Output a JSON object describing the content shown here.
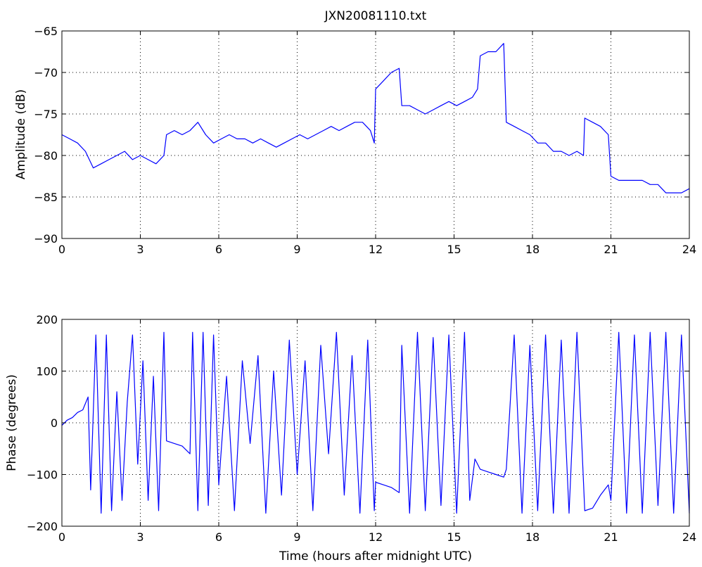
{
  "chart_data": [
    {
      "type": "line",
      "title": "JXN20081110.txt",
      "xlabel": "",
      "ylabel": "Amplitude (dB)",
      "xlim": [
        0,
        24
      ],
      "ylim": [
        -90,
        -65
      ],
      "xticks": [
        0,
        3,
        6,
        9,
        12,
        15,
        18,
        21,
        24
      ],
      "yticks": [
        -90,
        -85,
        -80,
        -75,
        -70,
        -65
      ],
      "grid": true,
      "color": "#0000ff",
      "series": [
        {
          "x": [
            0,
            0.3,
            0.6,
            0.9,
            1.2,
            1.5,
            1.8,
            2.1,
            2.4,
            2.7,
            3.0,
            3.3,
            3.6,
            3.9,
            4.0,
            4.3,
            4.6,
            4.9,
            5.2,
            5.5,
            5.8,
            6.1,
            6.4,
            6.7,
            7.0,
            7.3,
            7.6,
            7.9,
            8.2,
            8.5,
            8.8,
            9.1,
            9.4,
            9.7,
            10.0,
            10.3,
            10.6,
            10.9,
            11.2,
            11.5,
            11.8,
            11.95,
            12.0,
            12.3,
            12.6,
            12.9,
            13.0,
            13.3,
            13.6,
            13.9,
            14.2,
            14.5,
            14.8,
            15.1,
            15.4,
            15.7,
            15.9,
            16.0,
            16.3,
            16.6,
            16.9,
            17.0,
            17.3,
            17.6,
            17.9,
            18.2,
            18.5,
            18.8,
            19.1,
            19.4,
            19.7,
            19.95,
            20.0,
            20.3,
            20.6,
            20.9,
            21.0,
            21.3,
            21.6,
            21.9,
            22.2,
            22.5,
            22.8,
            23.1,
            23.4,
            23.7,
            24.0
          ],
          "values": [
            -77.5,
            -78,
            -78.5,
            -79.5,
            -81.5,
            -81,
            -80.5,
            -80,
            -79.5,
            -80.5,
            -80,
            -80.5,
            -81,
            -80,
            -77.5,
            -77,
            -77.5,
            -77,
            -76,
            -77.5,
            -78.5,
            -78,
            -77.5,
            -78,
            -78,
            -78.5,
            -78,
            -78.5,
            -79,
            -78.5,
            -78,
            -77.5,
            -78,
            -77.5,
            -77,
            -76.5,
            -77,
            -76.5,
            -76,
            -76,
            -77,
            -78.5,
            -72,
            -71,
            -70,
            -69.5,
            -74,
            -74,
            -74.5,
            -75,
            -74.5,
            -74,
            -73.5,
            -74,
            -73.5,
            -73,
            -72,
            -68,
            -67.5,
            -67.5,
            -66.5,
            -76,
            -76.5,
            -77,
            -77.5,
            -78.5,
            -78.5,
            -79.5,
            -79.5,
            -80,
            -79.5,
            -80,
            -75.5,
            -76,
            -76.5,
            -77.5,
            -82.5,
            -83,
            -83,
            -83,
            -83,
            -83.5,
            -83.5,
            -84.5,
            -84.5,
            -84.5,
            -84
          ]
        }
      ]
    },
    {
      "type": "line",
      "title": "",
      "xlabel": "Time (hours after midnight UTC)",
      "ylabel": "Phase (degrees)",
      "xlim": [
        0,
        24
      ],
      "ylim": [
        -200,
        200
      ],
      "xticks": [
        0,
        3,
        6,
        9,
        12,
        15,
        18,
        21,
        24
      ],
      "yticks": [
        -200,
        -100,
        0,
        100,
        200
      ],
      "grid": true,
      "color": "#0000ff",
      "series": [
        {
          "x": [
            0,
            0.2,
            0.4,
            0.6,
            0.8,
            1.0,
            1.1,
            1.3,
            1.5,
            1.7,
            1.9,
            2.1,
            2.3,
            2.5,
            2.7,
            2.9,
            3.1,
            3.3,
            3.5,
            3.7,
            3.9,
            4.0,
            4.3,
            4.6,
            4.9,
            5.0,
            5.2,
            5.4,
            5.6,
            5.8,
            6.0,
            6.3,
            6.6,
            6.9,
            7.2,
            7.5,
            7.8,
            8.1,
            8.4,
            8.7,
            9.0,
            9.3,
            9.6,
            9.9,
            10.2,
            10.5,
            10.8,
            11.1,
            11.4,
            11.7,
            11.95,
            12.0,
            12.3,
            12.6,
            12.9,
            13.0,
            13.3,
            13.6,
            13.9,
            14.2,
            14.5,
            14.8,
            15.1,
            15.4,
            15.6,
            15.8,
            16.0,
            16.3,
            16.6,
            16.9,
            17.0,
            17.3,
            17.6,
            17.9,
            18.2,
            18.5,
            18.8,
            19.1,
            19.4,
            19.7,
            20.0,
            20.3,
            20.6,
            20.9,
            21.0,
            21.3,
            21.6,
            21.9,
            22.2,
            22.5,
            22.8,
            23.1,
            23.4,
            23.7,
            24.0
          ],
          "values": [
            -5,
            5,
            10,
            20,
            25,
            50,
            -130,
            170,
            -175,
            170,
            -170,
            60,
            -150,
            40,
            170,
            -80,
            120,
            -150,
            90,
            -170,
            175,
            -35,
            -40,
            -45,
            -60,
            175,
            -170,
            175,
            -160,
            170,
            -120,
            90,
            -170,
            120,
            -40,
            130,
            -175,
            100,
            -140,
            160,
            -100,
            120,
            -170,
            150,
            -60,
            175,
            -140,
            130,
            -175,
            160,
            -170,
            -115,
            -120,
            -125,
            -135,
            150,
            -175,
            175,
            -170,
            165,
            -160,
            170,
            -175,
            175,
            -150,
            -70,
            -90,
            -95,
            -100,
            -105,
            -90,
            170,
            -175,
            150,
            -170,
            170,
            -175,
            160,
            -175,
            175,
            -170,
            -165,
            -140,
            -120,
            -150,
            175,
            -175,
            170,
            -175,
            175,
            -160,
            175,
            -175,
            170,
            -175
          ]
        }
      ]
    }
  ]
}
